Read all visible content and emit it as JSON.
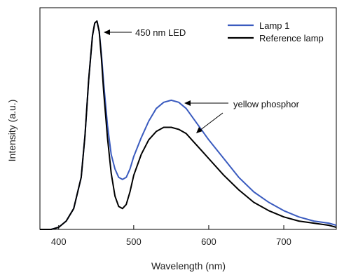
{
  "chart_data": {
    "type": "line",
    "xlabel": "Wavelength (nm)",
    "ylabel": "Intensity (a.u.)",
    "xlim": [
      375,
      770
    ],
    "ylim": [
      0,
      1.0
    ],
    "xticks": [
      400,
      500,
      600,
      700
    ],
    "yticks": [],
    "grid": false,
    "legend_position": "top-right",
    "x": [
      375,
      390,
      400,
      410,
      420,
      430,
      435,
      440,
      445,
      448,
      451,
      454,
      457,
      460,
      465,
      470,
      475,
      480,
      485,
      490,
      495,
      500,
      510,
      520,
      530,
      540,
      550,
      560,
      570,
      580,
      590,
      600,
      620,
      640,
      660,
      680,
      700,
      720,
      740,
      760,
      770
    ],
    "series": [
      {
        "name": "Lamp 1",
        "color": "#3a5bbf",
        "values": [
          0.0,
          0.0,
          0.01,
          0.04,
          0.1,
          0.25,
          0.45,
          0.72,
          0.93,
          0.99,
          1.0,
          0.95,
          0.84,
          0.7,
          0.5,
          0.36,
          0.29,
          0.25,
          0.24,
          0.25,
          0.29,
          0.35,
          0.44,
          0.52,
          0.58,
          0.61,
          0.62,
          0.61,
          0.58,
          0.53,
          0.48,
          0.43,
          0.34,
          0.25,
          0.18,
          0.13,
          0.09,
          0.06,
          0.04,
          0.03,
          0.02
        ]
      },
      {
        "name": "Reference lamp",
        "color": "#000000",
        "values": [
          0.0,
          0.0,
          0.01,
          0.04,
          0.1,
          0.25,
          0.45,
          0.72,
          0.93,
          0.99,
          1.0,
          0.95,
          0.82,
          0.66,
          0.44,
          0.27,
          0.16,
          0.11,
          0.1,
          0.12,
          0.18,
          0.26,
          0.36,
          0.43,
          0.47,
          0.49,
          0.49,
          0.48,
          0.46,
          0.42,
          0.38,
          0.34,
          0.26,
          0.19,
          0.13,
          0.09,
          0.06,
          0.04,
          0.03,
          0.02,
          0.01
        ]
      }
    ],
    "annotations": [
      {
        "text": "450 nm LED"
      },
      {
        "text": "yellow phosphor"
      }
    ]
  }
}
